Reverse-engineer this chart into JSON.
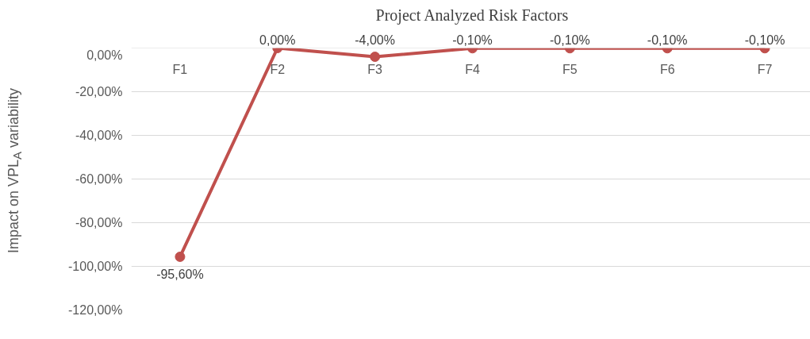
{
  "chart_data": {
    "type": "line",
    "title": "Project Analyzed Risk Factors",
    "ylabel": "Impact on VPL$_{A}$ variability",
    "categories": [
      "F1",
      "F2",
      "F3",
      "F4",
      "F5",
      "F6",
      "F7"
    ],
    "series": [
      {
        "color": "#c0504d",
        "values": [
          -95.6,
          0,
          -4,
          -0.1,
          -0.1,
          -0.1,
          -0.1
        ]
      }
    ],
    "value_labels": [
      "-95,60%",
      "0,00%",
      "-4,00%",
      "-0,10%",
      "-0,10%",
      "-0,10%",
      "-0,10%"
    ],
    "ylim": [
      -120,
      0
    ],
    "yticks": [
      {
        "value": -120,
        "label": "-120,00%"
      },
      {
        "value": -100,
        "label": "-100,00%"
      },
      {
        "value": -80,
        "label": "-80,00%"
      },
      {
        "value": -60,
        "label": "-60,00%"
      },
      {
        "value": -40,
        "label": "-40,00%"
      },
      {
        "value": -20,
        "label": "-20,00%"
      },
      {
        "value": 0,
        "label": "0,00%"
      }
    ],
    "grid": "y",
    "marker": "circle",
    "line_style": "solid"
  }
}
